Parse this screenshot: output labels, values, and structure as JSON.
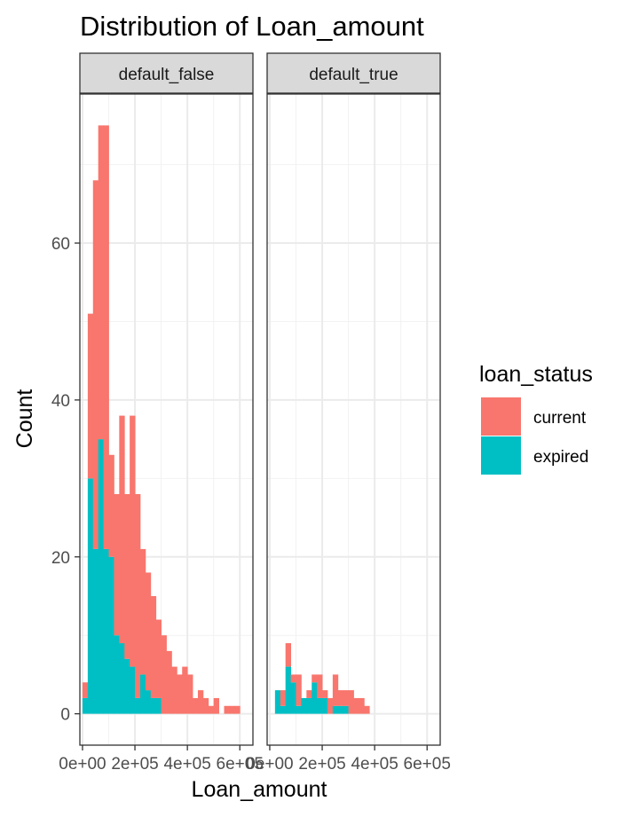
{
  "chart_data": {
    "type": "bar",
    "title": "Distribution of Loan_amount",
    "xlabel": "Loan_amount",
    "ylabel": "Count",
    "x_range": [
      -10000,
      650000
    ],
    "y_range": [
      -4,
      79
    ],
    "y_ticks": [
      {
        "value": 0,
        "label": "0"
      },
      {
        "value": 20,
        "label": "20"
      },
      {
        "value": 40,
        "label": "40"
      },
      {
        "value": 60,
        "label": "60"
      }
    ],
    "x_ticks": [
      {
        "value": 0,
        "label": "0e+00"
      },
      {
        "value": 200000,
        "label": "2e+05"
      },
      {
        "value": 400000,
        "label": "4e+05"
      },
      {
        "value": 600000,
        "label": "6e+05"
      }
    ],
    "bin_start": 0,
    "bin_width": 20000,
    "stacked": true,
    "legend": {
      "title": "loan_status",
      "position": "right",
      "entries": [
        {
          "name": "current",
          "color": "#F8766D"
        },
        {
          "name": "expired",
          "color": "#00BFC4"
        }
      ]
    },
    "facets": [
      {
        "label": "default_false",
        "series": [
          {
            "name": "expired",
            "values": [
              2,
              30,
              21,
              35,
              21,
              20,
              10,
              9,
              7,
              6,
              2,
              5,
              3,
              2,
              2,
              0,
              0,
              0,
              0,
              0,
              0,
              0,
              0,
              0,
              0,
              0,
              0,
              0,
              0,
              0
            ]
          },
          {
            "name": "current",
            "values": [
              2,
              21,
              47,
              40,
              54,
              13,
              18,
              29,
              21,
              32,
              26,
              16,
              15,
              13,
              10,
              10,
              8,
              6,
              5,
              6,
              5,
              2,
              3,
              2,
              1,
              2,
              0,
              1,
              1,
              1
            ]
          }
        ]
      },
      {
        "label": "default_true",
        "series": [
          {
            "name": "expired",
            "values": [
              0,
              3,
              1,
              6,
              4,
              1,
              2,
              2,
              4,
              2,
              2,
              0,
              1,
              1,
              1,
              0,
              0,
              0,
              0,
              0,
              0,
              0,
              0,
              0,
              0,
              0,
              0,
              0,
              0,
              0
            ]
          },
          {
            "name": "current",
            "values": [
              0,
              0,
              2,
              3,
              1,
              4,
              0,
              1,
              1,
              3,
              1,
              2,
              4,
              2,
              2,
              3,
              2,
              2,
              1,
              0,
              0,
              0,
              0,
              0,
              0,
              0,
              0,
              0,
              0,
              0
            ]
          }
        ]
      }
    ]
  }
}
